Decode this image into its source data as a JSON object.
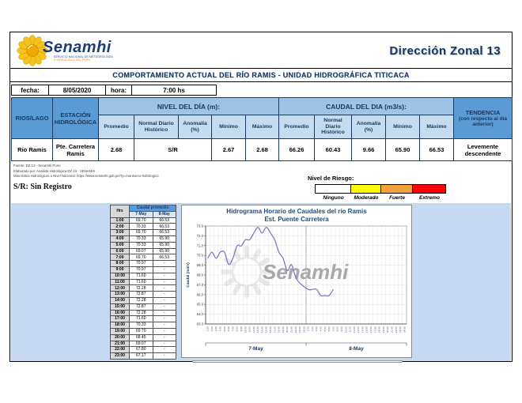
{
  "brand": {
    "wordmark": "Senamhi",
    "tagline_line1": "SERVICIO NACIONAL DE METEOROLOGÍA",
    "tagline_line2": "E HIDROLOGÍA DEL PERÚ",
    "zonal": "Dirección Zonal 13"
  },
  "title_bar": "COMPORTAMIENTO ACTUAL DEL RÍO RAMIS - UNIDAD HIDROGRÁFICA TITICACA",
  "date_row": {
    "fecha_label": "fecha:",
    "fecha_value": "8/05/2020",
    "hora_label": "hora:",
    "hora_value": "7:00 hs"
  },
  "main_table": {
    "rios_lago": "RIOS/LAGO",
    "estacion": "ESTACIÓN HIDROLÓGICA",
    "nivel_group": "NIVEL DEL DÍA (m):",
    "caudal_group": "CAUDAL DEL DIA (m3/s):",
    "tendencia_title": "TENDENCIA",
    "tendencia_sub": "(con respecto al día anterior)",
    "subheaders": [
      "Promedio",
      "Normal Diario Histórico",
      "Anomalía (%)",
      "Mínimo",
      "Máximo"
    ],
    "row": {
      "rio": "Rio Ramis",
      "estacion": "Pte. Carretera Ramis",
      "nivel_promedio": "2.68",
      "nivel_normal_anomalia": "S/R",
      "nivel_min": "2.67",
      "nivel_max": "2.68",
      "caudal_promedio": "66.26",
      "caudal_normal": "60.43",
      "caudal_anomalia": "9.66",
      "caudal_min": "65.90",
      "caudal_max": "66.53",
      "tendencia": "Levemente descendente"
    }
  },
  "notes": {
    "line1": "Fuente: DZ 13 - Senamhi Puno",
    "line2": "Elaborado por: Analista Hidrológica DZ 13 - SENAMHI",
    "line3": "Más Datos Hidrológicos a Nivel Nacional: https://www.senamhi.gob.pe/?p=monitoreo-hidrologico",
    "sr": "S/R: Sin Registro"
  },
  "risk": {
    "label": "Nivel de Riesgo:",
    "levels": [
      {
        "name": "Ninguno",
        "color": "#FFFFFF"
      },
      {
        "name": "Moderado",
        "color": "#FFFF00"
      },
      {
        "name": "Fuerte",
        "color": "#F2A23B"
      },
      {
        "name": "Extremo",
        "color": "#FF0000"
      }
    ]
  },
  "hours_table": {
    "hrs_header": "Hrs",
    "group_header": "Caudal promedio",
    "day_headers": [
      "7-May",
      "8-May"
    ],
    "rows": [
      [
        "1:00",
        "69.70",
        "66.53"
      ],
      [
        "2:00",
        "70.33",
        "66.53"
      ],
      [
        "3:00",
        "69.70",
        "66.53"
      ],
      [
        "4:00",
        "70.33",
        "65.90"
      ],
      [
        "5:00",
        "70.33",
        "65.90"
      ],
      [
        "6:00",
        "69.07",
        "65.90"
      ],
      [
        "7:00",
        "69.70",
        "66.53"
      ],
      [
        "8:00",
        "70.97",
        "-"
      ],
      [
        "9:00",
        "70.97",
        "-"
      ],
      [
        "10:00",
        "71.60",
        "-"
      ],
      [
        "11:00",
        "71.60",
        "-"
      ],
      [
        "12:00",
        "72.28",
        "-"
      ],
      [
        "13:00",
        "72.87",
        "-"
      ],
      [
        "14:00",
        "72.28",
        "-"
      ],
      [
        "15:00",
        "72.87",
        "-"
      ],
      [
        "16:00",
        "72.28",
        "-"
      ],
      [
        "17:00",
        "71.60",
        "-"
      ],
      [
        "18:00",
        "70.33",
        "-"
      ],
      [
        "19:00",
        "69.70",
        "-"
      ],
      [
        "20:00",
        "68.45",
        "-"
      ],
      [
        "21:00",
        "69.07",
        "-"
      ],
      [
        "22:00",
        "67.80",
        "-"
      ],
      [
        "23:00",
        "67.17",
        "-"
      ]
    ]
  },
  "chart_data": {
    "type": "line",
    "title": "Hidrograma Horario de Caudales del río Ramis",
    "subtitle": "Est. Puente Carretera",
    "ylabel": "Caudal (m3/s)",
    "ylim": [
      63.0,
      73.0
    ],
    "ytick_step": 1.0,
    "grid": true,
    "legend": "none",
    "watermark": "Senamhi",
    "days": [
      "7-May",
      "8-May"
    ],
    "x_tick_labels": [
      "1:00",
      "2:00",
      "3:00",
      "4:00",
      "5:00",
      "6:00",
      "7:00",
      "8:00",
      "9:00",
      "10:00",
      "11:00",
      "12:00",
      "13:00",
      "14:00",
      "15:00",
      "16:00",
      "17:00",
      "18:00",
      "19:00",
      "20:00",
      "21:00",
      "22:00",
      "23:00",
      "24:00"
    ],
    "series": [
      {
        "name": "7-May",
        "hours": "1:00-23:00",
        "values": [
          69.7,
          70.33,
          69.7,
          70.33,
          70.33,
          69.07,
          69.7,
          70.97,
          70.97,
          71.6,
          71.6,
          72.28,
          72.87,
          72.28,
          72.87,
          72.28,
          71.6,
          70.33,
          69.7,
          68.45,
          69.07,
          67.8,
          67.17
        ]
      },
      {
        "name": "8-May",
        "hours": "1:00-7:00",
        "values": [
          66.53,
          66.53,
          66.53,
          65.9,
          65.9,
          65.9,
          66.53
        ]
      }
    ],
    "line_color": "#7373C9"
  }
}
